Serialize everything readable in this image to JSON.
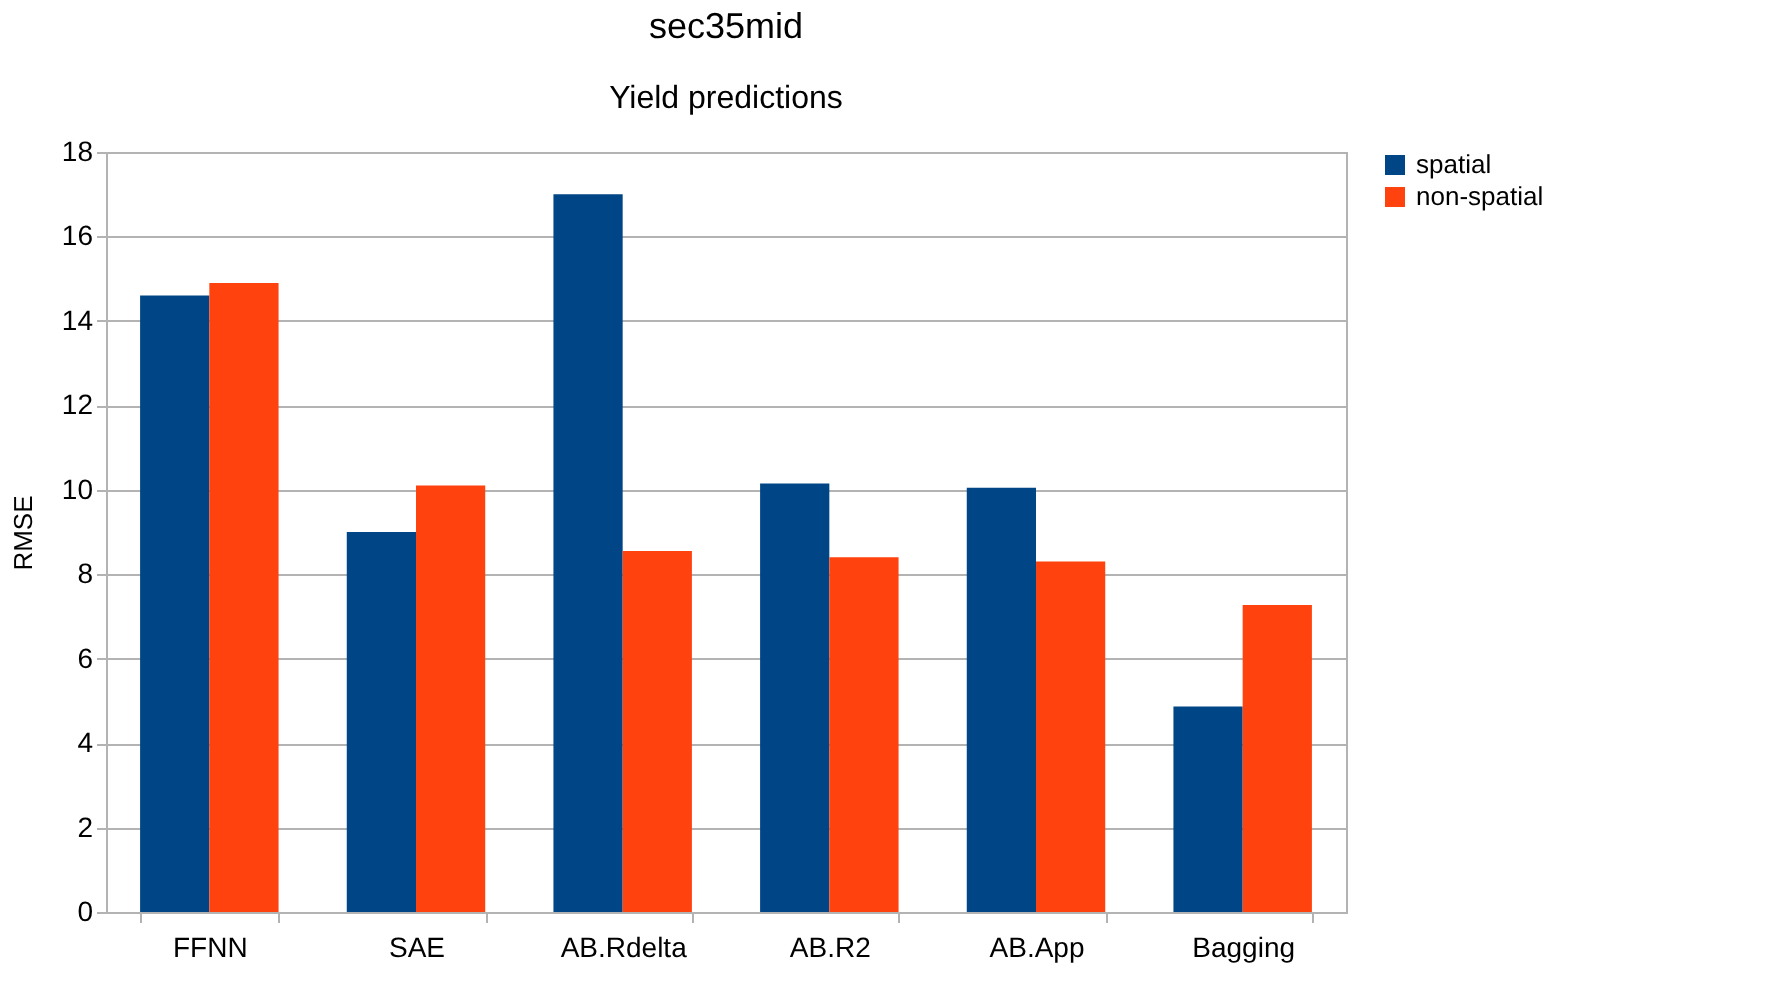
{
  "chart_data": {
    "type": "bar",
    "title": "sec35mid",
    "subtitle": "Yield predictions",
    "ylabel": "RMSE",
    "categories": [
      "FFNN",
      "SAE",
      "AB.Rdelta",
      "AB.R2",
      "AB.App",
      "Bagging"
    ],
    "series": [
      {
        "name": "spatial",
        "color": "#004586",
        "values": [
          14.6,
          9.0,
          17.0,
          10.15,
          10.05,
          4.87
        ]
      },
      {
        "name": "non-spatial",
        "color": "#ff420e",
        "values": [
          14.9,
          10.1,
          8.55,
          8.4,
          8.3,
          7.27
        ]
      }
    ],
    "ylim": [
      0,
      18
    ],
    "yticks": [
      0,
      2,
      4,
      6,
      8,
      10,
      12,
      14,
      16,
      18
    ],
    "grid": "y",
    "legend": "right"
  }
}
